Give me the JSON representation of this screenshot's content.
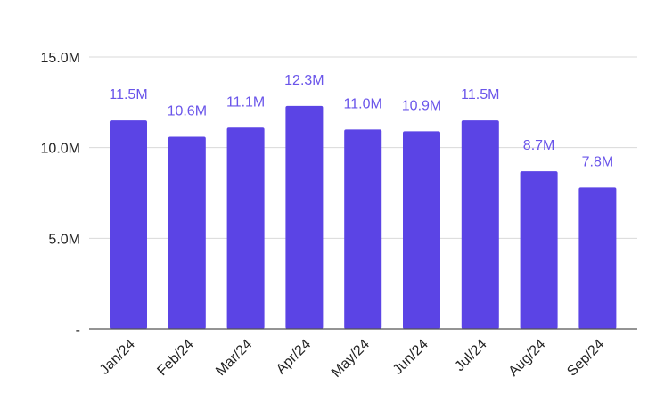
{
  "chart_data": {
    "type": "bar",
    "categories": [
      "Jan/24",
      "Feb/24",
      "Mar/24",
      "Apr/24",
      "May/24",
      "Jun/24",
      "Jul/24",
      "Aug/24",
      "Sep/24"
    ],
    "values": [
      11.5,
      10.6,
      11.1,
      12.3,
      11.0,
      10.9,
      11.5,
      8.7,
      7.8
    ],
    "data_labels": [
      "11.5M",
      "10.6M",
      "11.1M",
      "12.3M",
      "11.0M",
      "10.9M",
      "11.5M",
      "8.7M",
      "7.8M"
    ],
    "unit": "M",
    "yticks": [
      0,
      5,
      10,
      15
    ],
    "ytick_labels": [
      "-",
      "5.0M",
      "10.0M",
      "15.0M"
    ],
    "ylim": [
      0,
      15
    ],
    "grid": true,
    "colors": {
      "bar": "#5b44e5",
      "label": "#6a55ea",
      "grid": "#d9d9d9",
      "axis": "#555555",
      "text": "#222222"
    }
  }
}
